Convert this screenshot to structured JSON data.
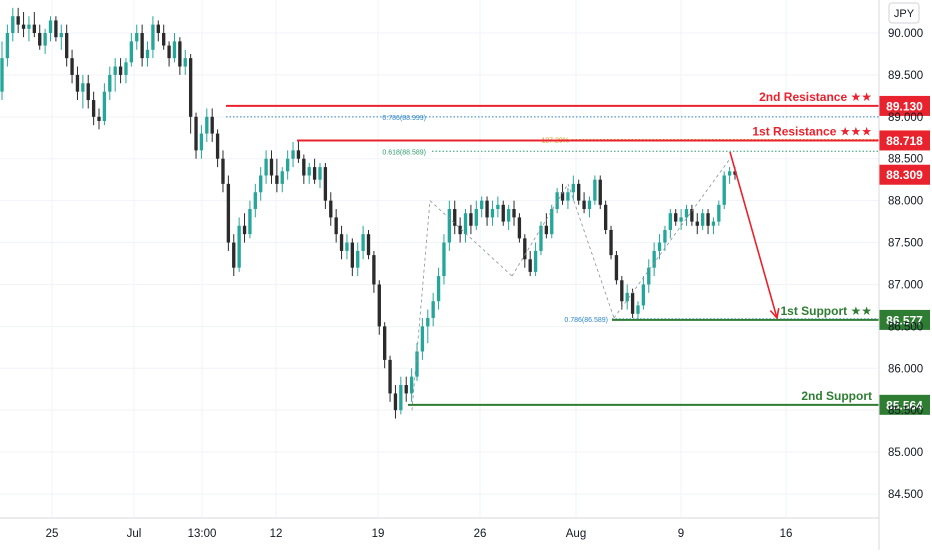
{
  "chart_data": {
    "type": "candlestick",
    "currency_label": "JPY",
    "ylim": [
      84.1,
      90.4
    ],
    "y_ticks": [
      "90.000",
      "89.500",
      "89.000",
      "88.500",
      "88.000",
      "87.500",
      "87.000",
      "86.500",
      "86.000",
      "85.500",
      "85.000",
      "84.500"
    ],
    "x_ticks": [
      "25",
      "Jul",
      "13:00",
      "12",
      "19",
      "26",
      "Aug",
      "9",
      "16"
    ],
    "levels": [
      {
        "name": "2nd Resistance ★★",
        "value": 89.13,
        "value_label": "89.130",
        "color": "#e8232e"
      },
      {
        "name": "1st Resistance ★★★",
        "value": 88.718,
        "value_label": "88.718",
        "color": "#e8232e"
      },
      {
        "name": "1st Support ★★",
        "value": 86.577,
        "value_label": "86.577",
        "color": "#2e7d32"
      },
      {
        "name": "2nd Support",
        "value": 85.564,
        "value_label": "85.564",
        "color": "#2e7d32"
      }
    ],
    "current_price": {
      "value": 88.309,
      "label": "88.309",
      "color": "#e8232e"
    },
    "fib_annotations": [
      {
        "label": "0.786(88.999)",
        "value": 88.999,
        "color": "#2f86c7"
      },
      {
        "label": "0.618(88.589)",
        "value": 88.589,
        "color": "#2f9d6e"
      },
      {
        "label": "127.20%",
        "value": 88.73,
        "color": "#d4a017"
      },
      {
        "label": "0.786(86.589)",
        "value": 86.589,
        "color": "#2f86c7"
      }
    ],
    "candles": [
      [
        89.3,
        89.9,
        89.2,
        89.7
      ],
      [
        89.7,
        90.1,
        89.6,
        90.0
      ],
      [
        90.0,
        90.3,
        89.9,
        90.2
      ],
      [
        90.2,
        90.3,
        90.0,
        90.1
      ],
      [
        90.1,
        90.25,
        89.95,
        90.05
      ],
      [
        90.05,
        90.2,
        89.9,
        90.1
      ],
      [
        90.1,
        90.25,
        89.95,
        90.0
      ],
      [
        90.0,
        90.1,
        89.8,
        89.85
      ],
      [
        89.85,
        90.05,
        89.75,
        90.0
      ],
      [
        90.0,
        90.2,
        89.9,
        90.15
      ],
      [
        90.15,
        90.2,
        89.9,
        89.95
      ],
      [
        89.95,
        90.1,
        89.8,
        90.0
      ],
      [
        90.0,
        90.1,
        89.6,
        89.7
      ],
      [
        89.7,
        89.8,
        89.4,
        89.5
      ],
      [
        89.5,
        89.6,
        89.2,
        89.3
      ],
      [
        89.3,
        89.5,
        89.1,
        89.4
      ],
      [
        89.4,
        89.5,
        89.1,
        89.2
      ],
      [
        89.2,
        89.3,
        88.9,
        89.0
      ],
      [
        89.0,
        89.1,
        88.85,
        88.95
      ],
      [
        88.95,
        89.4,
        88.9,
        89.3
      ],
      [
        89.3,
        89.6,
        89.2,
        89.5
      ],
      [
        89.5,
        89.7,
        89.3,
        89.6
      ],
      [
        89.6,
        89.7,
        89.4,
        89.5
      ],
      [
        89.5,
        89.7,
        89.4,
        89.65
      ],
      [
        89.65,
        90.0,
        89.6,
        89.9
      ],
      [
        89.9,
        90.1,
        89.8,
        90.0
      ],
      [
        90.0,
        90.1,
        89.6,
        89.7
      ],
      [
        89.7,
        89.9,
        89.6,
        89.8
      ],
      [
        89.8,
        90.2,
        89.7,
        90.1
      ],
      [
        90.1,
        90.15,
        89.9,
        90.0
      ],
      [
        90.0,
        90.1,
        89.8,
        89.85
      ],
      [
        89.85,
        89.9,
        89.6,
        89.7
      ],
      [
        89.7,
        90.0,
        89.65,
        89.9
      ],
      [
        89.9,
        89.95,
        89.5,
        89.6
      ],
      [
        89.6,
        89.8,
        89.5,
        89.7
      ],
      [
        89.7,
        89.75,
        88.8,
        89.0
      ],
      [
        89.0,
        89.05,
        88.5,
        88.6
      ],
      [
        88.6,
        88.9,
        88.5,
        88.8
      ],
      [
        88.8,
        89.1,
        88.7,
        89.0
      ],
      [
        89.0,
        89.1,
        88.7,
        88.8
      ],
      [
        88.8,
        88.85,
        88.4,
        88.5
      ],
      [
        88.5,
        88.6,
        88.1,
        88.2
      ],
      [
        88.2,
        88.3,
        87.4,
        87.5
      ],
      [
        87.5,
        87.6,
        87.1,
        87.2
      ],
      [
        87.2,
        87.8,
        87.15,
        87.7
      ],
      [
        87.7,
        87.85,
        87.5,
        87.6
      ],
      [
        87.6,
        88.0,
        87.55,
        87.9
      ],
      [
        87.9,
        88.2,
        87.8,
        88.1
      ],
      [
        88.1,
        88.4,
        88.0,
        88.3
      ],
      [
        88.3,
        88.6,
        88.2,
        88.5
      ],
      [
        88.5,
        88.6,
        88.2,
        88.3
      ],
      [
        88.3,
        88.5,
        88.1,
        88.2
      ],
      [
        88.2,
        88.4,
        88.1,
        88.35
      ],
      [
        88.35,
        88.6,
        88.25,
        88.5
      ],
      [
        88.5,
        88.7,
        88.4,
        88.6
      ],
      [
        88.6,
        88.72,
        88.45,
        88.5
      ],
      [
        88.5,
        88.55,
        88.2,
        88.3
      ],
      [
        88.3,
        88.45,
        88.2,
        88.4
      ],
      [
        88.4,
        88.5,
        88.2,
        88.25
      ],
      [
        88.25,
        88.45,
        88.15,
        88.4
      ],
      [
        88.4,
        88.45,
        87.9,
        88.0
      ],
      [
        88.0,
        88.1,
        87.7,
        87.8
      ],
      [
        87.8,
        87.9,
        87.5,
        87.6
      ],
      [
        87.6,
        87.7,
        87.3,
        87.4
      ],
      [
        87.4,
        87.6,
        87.3,
        87.5
      ],
      [
        87.5,
        87.55,
        87.1,
        87.2
      ],
      [
        87.2,
        87.5,
        87.1,
        87.4
      ],
      [
        87.4,
        87.7,
        87.3,
        87.6
      ],
      [
        87.6,
        87.65,
        87.3,
        87.35
      ],
      [
        87.35,
        87.4,
        86.9,
        87.0
      ],
      [
        87.0,
        87.05,
        86.4,
        86.5
      ],
      [
        86.5,
        86.55,
        86.0,
        86.1
      ],
      [
        86.1,
        86.15,
        85.6,
        85.7
      ],
      [
        85.7,
        85.8,
        85.4,
        85.5
      ],
      [
        85.5,
        85.9,
        85.45,
        85.8
      ],
      [
        85.8,
        85.9,
        85.6,
        85.7
      ],
      [
        85.7,
        86.0,
        85.6,
        85.9
      ],
      [
        85.9,
        86.3,
        85.85,
        86.2
      ],
      [
        86.2,
        86.6,
        86.1,
        86.5
      ],
      [
        86.5,
        86.7,
        86.3,
        86.6
      ],
      [
        86.6,
        86.9,
        86.5,
        86.8
      ],
      [
        86.8,
        87.2,
        86.7,
        87.1
      ],
      [
        87.1,
        87.6,
        87.0,
        87.5
      ],
      [
        87.5,
        88.0,
        87.4,
        87.9
      ],
      [
        87.9,
        88.0,
        87.6,
        87.7
      ],
      [
        87.7,
        87.8,
        87.5,
        87.6
      ],
      [
        87.6,
        87.9,
        87.5,
        87.85
      ],
      [
        87.85,
        87.95,
        87.6,
        87.7
      ],
      [
        87.7,
        88.0,
        87.65,
        87.9
      ],
      [
        87.9,
        88.05,
        87.8,
        88.0
      ],
      [
        88.0,
        88.05,
        87.7,
        87.8
      ],
      [
        87.8,
        88.0,
        87.7,
        87.9
      ],
      [
        87.9,
        88.05,
        87.8,
        87.95
      ],
      [
        87.95,
        88.0,
        87.7,
        87.75
      ],
      [
        87.75,
        87.95,
        87.65,
        87.9
      ],
      [
        87.9,
        88.0,
        87.7,
        87.8
      ],
      [
        87.8,
        87.85,
        87.5,
        87.55
      ],
      [
        87.55,
        87.6,
        87.2,
        87.3
      ],
      [
        87.3,
        87.4,
        87.1,
        87.15
      ],
      [
        87.15,
        87.5,
        87.1,
        87.4
      ],
      [
        87.4,
        87.75,
        87.35,
        87.7
      ],
      [
        87.7,
        87.85,
        87.55,
        87.6
      ],
      [
        87.6,
        87.95,
        87.55,
        87.9
      ],
      [
        87.9,
        88.15,
        87.85,
        88.1
      ],
      [
        88.1,
        88.2,
        87.95,
        88.0
      ],
      [
        88.0,
        88.15,
        87.9,
        88.1
      ],
      [
        88.1,
        88.3,
        88.0,
        88.2
      ],
      [
        88.2,
        88.25,
        87.95,
        88.0
      ],
      [
        88.0,
        88.1,
        87.85,
        87.9
      ],
      [
        87.9,
        88.05,
        87.8,
        88.0
      ],
      [
        88.0,
        88.3,
        87.95,
        88.25
      ],
      [
        88.25,
        88.3,
        87.9,
        87.95
      ],
      [
        87.95,
        88.0,
        87.6,
        87.65
      ],
      [
        87.65,
        87.7,
        87.3,
        87.35
      ],
      [
        87.35,
        87.4,
        87.0,
        87.05
      ],
      [
        87.05,
        87.1,
        86.7,
        86.8
      ],
      [
        86.8,
        87.0,
        86.7,
        86.9
      ],
      [
        86.9,
        86.95,
        86.6,
        86.65
      ],
      [
        86.65,
        86.8,
        86.58,
        86.75
      ],
      [
        86.75,
        87.1,
        86.7,
        87.0
      ],
      [
        87.0,
        87.3,
        86.9,
        87.2
      ],
      [
        87.2,
        87.5,
        87.1,
        87.4
      ],
      [
        87.4,
        87.6,
        87.3,
        87.5
      ],
      [
        87.5,
        87.7,
        87.4,
        87.65
      ],
      [
        87.65,
        87.9,
        87.55,
        87.85
      ],
      [
        87.85,
        87.9,
        87.7,
        87.75
      ],
      [
        87.75,
        87.9,
        87.65,
        87.8
      ],
      [
        87.8,
        87.95,
        87.7,
        87.9
      ],
      [
        87.9,
        87.95,
        87.7,
        87.75
      ],
      [
        87.75,
        87.85,
        87.6,
        87.7
      ],
      [
        87.7,
        87.9,
        87.65,
        87.85
      ],
      [
        87.85,
        87.9,
        87.6,
        87.7
      ],
      [
        87.7,
        87.8,
        87.6,
        87.75
      ],
      [
        87.75,
        88.0,
        87.7,
        87.95
      ],
      [
        87.95,
        88.35,
        87.9,
        88.3
      ],
      [
        88.3,
        88.4,
        88.2,
        88.35
      ],
      [
        88.35,
        88.4,
        88.25,
        88.31
      ]
    ]
  }
}
